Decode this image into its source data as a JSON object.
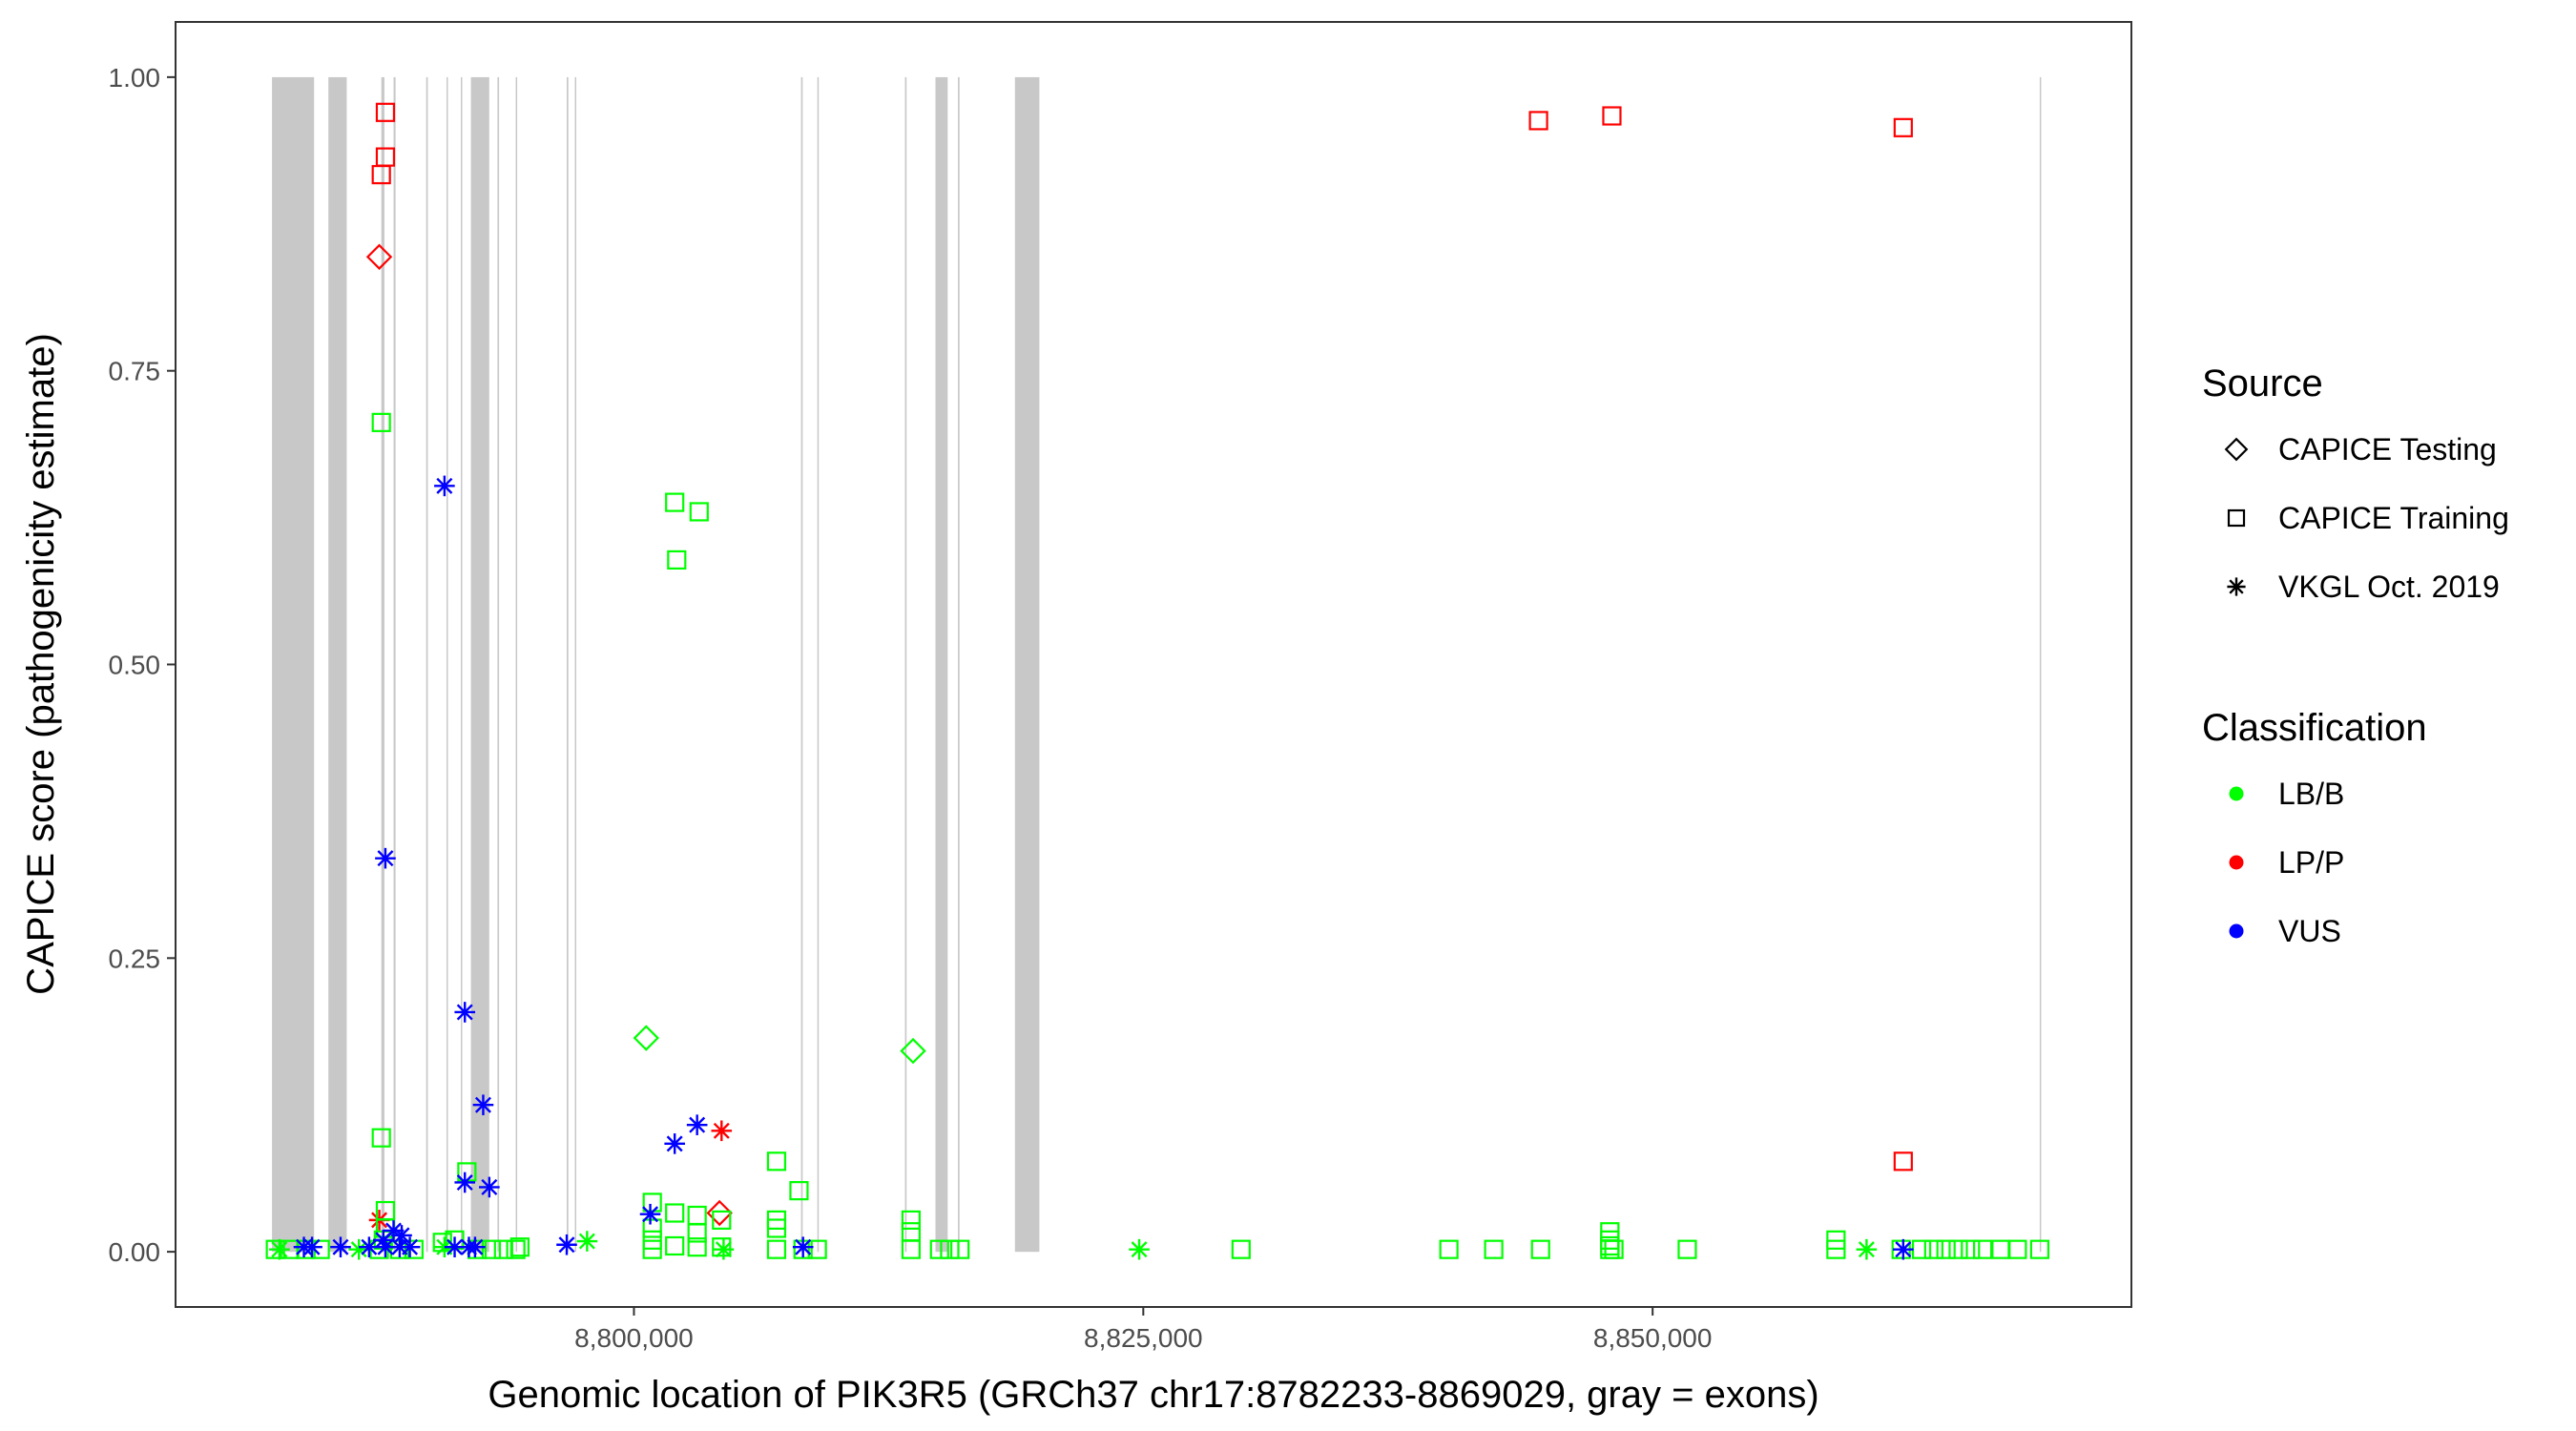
{
  "chart_data": {
    "type": "scatter",
    "title": "",
    "xlabel": "Genomic location of PIK3R5 (GRCh37 chr17:8782233-8869029, gray = exons)",
    "ylabel": "CAPICE score (pathogenicity estimate)",
    "xlim": [
      8777500,
      8873500
    ],
    "ylim": [
      -0.047,
      1.047
    ],
    "x_ticks": [
      8800000,
      8825000,
      8850000
    ],
    "x_tick_labels": [
      "8,800,000",
      "8,825,000",
      "8,850,000"
    ],
    "y_ticks": [
      0,
      0.25,
      0.5,
      0.75,
      1.0
    ],
    "y_tick_labels": [
      "0.00",
      "0.25",
      "0.50",
      "0.75",
      "1.00"
    ],
    "grid": false,
    "exon_bands": [
      [
        8782233,
        8784300
      ],
      [
        8785000,
        8785900
      ],
      [
        8787600,
        8787750
      ],
      [
        8788200,
        8788300
      ],
      [
        8789800,
        8789880
      ],
      [
        8790800,
        8790870
      ],
      [
        8791500,
        8791560
      ],
      [
        8792000,
        8792900
      ],
      [
        8793300,
        8793380
      ],
      [
        8794200,
        8794270
      ],
      [
        8796700,
        8796780
      ],
      [
        8797100,
        8797170
      ],
      [
        8808200,
        8808280
      ],
      [
        8809000,
        8809060
      ],
      [
        8813300,
        8813380
      ],
      [
        8814800,
        8815400
      ],
      [
        8815900,
        8815980
      ],
      [
        8818700,
        8819900
      ],
      [
        8869000,
        8869029
      ]
    ],
    "legend": {
      "placement": "right",
      "source_title": "Source",
      "source_entries": [
        {
          "label": "CAPICE Testing",
          "shape": "diamond"
        },
        {
          "label": "CAPICE Training",
          "shape": "square"
        },
        {
          "label": "VKGL Oct. 2019",
          "shape": "asterisk"
        }
      ],
      "class_title": "Classification",
      "class_entries": [
        {
          "label": "LB/B",
          "color": "#00ff00"
        },
        {
          "label": "LP/P",
          "color": "#ff0000"
        },
        {
          "label": "VUS",
          "color": "#0000ff"
        }
      ]
    },
    "series": [
      {
        "shape": "square",
        "color": "#ff0000",
        "points": [
          [
            8787800,
            0.97
          ],
          [
            8787800,
            0.932
          ],
          [
            8787600,
            0.917
          ],
          [
            8844400,
            0.963
          ],
          [
            8848000,
            0.967
          ],
          [
            8862300,
            0.957
          ],
          [
            8862300,
            0.077
          ]
        ]
      },
      {
        "shape": "diamond",
        "color": "#ff0000",
        "points": [
          [
            8787500,
            0.847
          ],
          [
            8804200,
            0.033
          ]
        ]
      },
      {
        "shape": "asterisk",
        "color": "#ff0000",
        "points": [
          [
            8787500,
            0.027
          ],
          [
            8804300,
            0.103
          ]
        ]
      },
      {
        "shape": "diamond",
        "color": "#00ff00",
        "points": [
          [
            8800600,
            0.182
          ],
          [
            8813700,
            0.171
          ]
        ]
      },
      {
        "shape": "square",
        "color": "#00ff00",
        "points": [
          [
            8787600,
            0.706
          ],
          [
            8787600,
            0.097
          ],
          [
            8787800,
            0.035
          ],
          [
            8787800,
            0.02
          ],
          [
            8787700,
            0.01
          ],
          [
            8787500,
            0.002
          ],
          [
            8788500,
            0.002
          ],
          [
            8789200,
            0.002
          ],
          [
            8782400,
            0.002
          ],
          [
            8783100,
            0.002
          ],
          [
            8783900,
            0.002
          ],
          [
            8784600,
            0.002
          ],
          [
            8790600,
            0.008
          ],
          [
            8791200,
            0.01
          ],
          [
            8791800,
            0.068
          ],
          [
            8792300,
            0.002
          ],
          [
            8793000,
            0.002
          ],
          [
            8793600,
            0.002
          ],
          [
            8794200,
            0.002
          ],
          [
            8794400,
            0.004
          ],
          [
            8802000,
            0.638
          ],
          [
            8803200,
            0.63
          ],
          [
            8802100,
            0.589
          ],
          [
            8800900,
            0.042
          ],
          [
            8800900,
            0.02
          ],
          [
            8800900,
            0.01
          ],
          [
            8800900,
            0.002
          ],
          [
            8802000,
            0.033
          ],
          [
            8802000,
            0.005
          ],
          [
            8803100,
            0.031
          ],
          [
            8803100,
            0.016
          ],
          [
            8803100,
            0.004
          ],
          [
            8804300,
            0.027
          ],
          [
            8804300,
            0.004
          ],
          [
            8807000,
            0.077
          ],
          [
            8807000,
            0.027
          ],
          [
            8807000,
            0.02
          ],
          [
            8807000,
            0.002
          ],
          [
            8808100,
            0.052
          ],
          [
            8808300,
            0.002
          ],
          [
            8809000,
            0.002
          ],
          [
            8813600,
            0.027
          ],
          [
            8813600,
            0.017
          ],
          [
            8813600,
            0.002
          ],
          [
            8815000,
            0.002
          ],
          [
            8815500,
            0.002
          ],
          [
            8816000,
            0.002
          ],
          [
            8829800,
            0.002
          ],
          [
            8840000,
            0.002
          ],
          [
            8842200,
            0.002
          ],
          [
            8844500,
            0.002
          ],
          [
            8847900,
            0.017
          ],
          [
            8847900,
            0.01
          ],
          [
            8847900,
            0.005
          ],
          [
            8847900,
            0.002
          ],
          [
            8848100,
            0.002
          ],
          [
            8851700,
            0.002
          ],
          [
            8859000,
            0.01
          ],
          [
            8859000,
            0.002
          ],
          [
            8862200,
            0.002
          ],
          [
            8863200,
            0.002
          ],
          [
            8863800,
            0.002
          ],
          [
            8864400,
            0.002
          ],
          [
            8865000,
            0.002
          ],
          [
            8865600,
            0.002
          ],
          [
            8866200,
            0.002
          ],
          [
            8867100,
            0.002
          ],
          [
            8867900,
            0.002
          ],
          [
            8869000,
            0.002
          ]
        ]
      },
      {
        "shape": "asterisk",
        "color": "#00ff00",
        "points": [
          [
            8782600,
            0.002
          ],
          [
            8786500,
            0.002
          ],
          [
            8790700,
            0.004
          ],
          [
            8797700,
            0.009
          ],
          [
            8804400,
            0.002
          ],
          [
            8824800,
            0.002
          ],
          [
            8860500,
            0.002
          ]
        ]
      },
      {
        "shape": "asterisk",
        "color": "#0000ff",
        "points": [
          [
            8790700,
            0.652
          ],
          [
            8787800,
            0.335
          ],
          [
            8791700,
            0.204
          ],
          [
            8792600,
            0.125
          ],
          [
            8791700,
            0.059
          ],
          [
            8792900,
            0.055
          ],
          [
            8787700,
            0.01
          ],
          [
            8788200,
            0.018
          ],
          [
            8788600,
            0.014
          ],
          [
            8787800,
            0.004
          ],
          [
            8788500,
            0.004
          ],
          [
            8789000,
            0.004
          ],
          [
            8783800,
            0.004
          ],
          [
            8784200,
            0.004
          ],
          [
            8785600,
            0.004
          ],
          [
            8787000,
            0.004
          ],
          [
            8791200,
            0.004
          ],
          [
            8791900,
            0.004
          ],
          [
            8792200,
            0.004
          ],
          [
            8796700,
            0.006
          ],
          [
            8800800,
            0.032
          ],
          [
            8802000,
            0.092
          ],
          [
            8803100,
            0.108
          ],
          [
            8808300,
            0.004
          ],
          [
            8862300,
            0.002
          ]
        ]
      }
    ]
  }
}
